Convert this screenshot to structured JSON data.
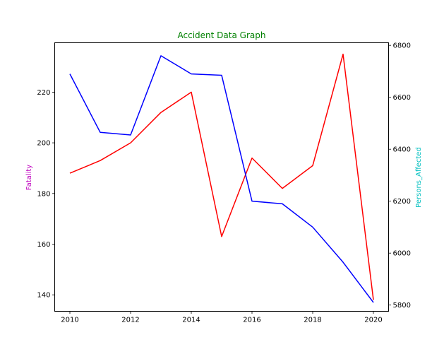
{
  "chart_data": {
    "type": "line",
    "title": "Accident Data Graph",
    "title_color": "#008000",
    "x": [
      2010,
      2011,
      2012,
      2013,
      2014,
      2015,
      2016,
      2017,
      2018,
      2019,
      2020
    ],
    "xlim": [
      2009.5,
      2020.5
    ],
    "xticks": [
      2010,
      2012,
      2014,
      2016,
      2018,
      2020
    ],
    "grid": false,
    "left_axis": {
      "label": "Fatality",
      "label_color": "#bf00bf",
      "ylim": [
        133.5,
        239.5
      ],
      "ticks": [
        140,
        160,
        180,
        200,
        220
      ]
    },
    "right_axis": {
      "label": "Persons_Affected",
      "label_color": "#00bfbf",
      "ylim": [
        5776,
        6810
      ],
      "ticks": [
        5800,
        6000,
        6200,
        6400,
        6600,
        6800
      ]
    },
    "series": [
      {
        "axis": "left",
        "color": "#ff0000",
        "values": [
          188,
          193,
          200,
          212,
          220,
          163,
          194,
          182,
          191,
          235,
          138
        ]
      },
      {
        "axis": "right",
        "color": "#0000ff",
        "values": [
          6690,
          6465,
          6455,
          6760,
          6690,
          6685,
          6200,
          6190,
          6100,
          5965,
          5810
        ]
      }
    ]
  }
}
